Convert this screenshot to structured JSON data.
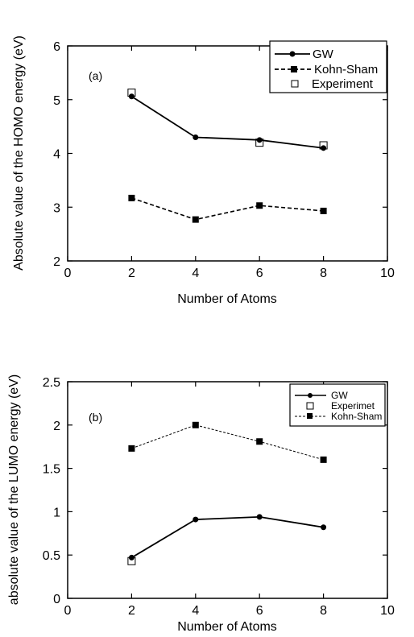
{
  "chart_data": [
    {
      "type": "line",
      "panel_label": "(a)",
      "xlabel": "Number of Atoms",
      "ylabel": "Absolute value of the HOMO energy (eV)",
      "xlim": [
        0,
        10
      ],
      "ylim": [
        2,
        6
      ],
      "xticks": [
        "0",
        "2",
        "4",
        "6",
        "8",
        "10"
      ],
      "yticks": [
        "2",
        "3",
        "4",
        "5",
        "6"
      ],
      "legend_position": "top-right",
      "series": [
        {
          "name": "GW",
          "style": "solid",
          "marker": "circle",
          "x": [
            2,
            4,
            6,
            8
          ],
          "y": [
            5.06,
            4.3,
            4.25,
            4.1
          ]
        },
        {
          "name": "Kohn-Sham",
          "style": "dashed",
          "marker": "square-filled",
          "x": [
            2,
            4,
            6,
            8
          ],
          "y": [
            3.17,
            2.77,
            3.03,
            2.93
          ]
        },
        {
          "name": "Experiment",
          "style": "none",
          "marker": "square-open",
          "x": [
            2,
            6,
            8
          ],
          "y": [
            5.13,
            4.2,
            4.15
          ]
        }
      ]
    },
    {
      "type": "line",
      "panel_label": "(b)",
      "xlabel": "Number of Atoms",
      "ylabel": "absolute value of the LUMO energy (eV)",
      "xlim": [
        0,
        10
      ],
      "ylim": [
        0,
        2.5
      ],
      "xticks": [
        "0",
        "2",
        "4",
        "6",
        "8",
        "10"
      ],
      "yticks": [
        "0",
        "0.5",
        "1",
        "1.5",
        "2",
        "2.5"
      ],
      "legend_position": "top-right",
      "series": [
        {
          "name": "GW",
          "style": "solid",
          "marker": "circle",
          "x": [
            2,
            4,
            6,
            8
          ],
          "y": [
            0.47,
            0.91,
            0.94,
            0.82
          ]
        },
        {
          "name": "Experimet",
          "style": "none",
          "marker": "square-open",
          "x": [
            2
          ],
          "y": [
            0.43
          ]
        },
        {
          "name": "Kohn-Sham",
          "style": "dashed-thin",
          "marker": "square-filled",
          "x": [
            2,
            4,
            6,
            8
          ],
          "y": [
            1.73,
            2.0,
            1.81,
            1.6
          ]
        }
      ]
    }
  ]
}
